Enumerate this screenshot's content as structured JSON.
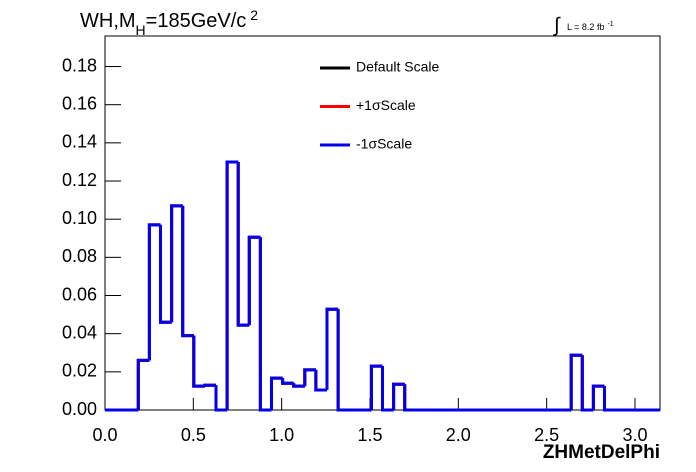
{
  "chart_data": {
    "type": "histogram",
    "title": {
      "main": "WH,M",
      "sub": "H",
      "rest": "=185GeV/c",
      "sup": "2"
    },
    "annotation": {
      "text": "L = 8.2 fb",
      "sup": "-1"
    },
    "xlabel": "ZHMetDelPhi",
    "bins": [
      0,
      0.0628,
      0.1257,
      0.1885,
      0.2513,
      0.3142,
      0.377,
      0.4398,
      0.5027,
      0.5655,
      0.6283,
      0.6912,
      0.754,
      0.8168,
      0.8796,
      0.9425,
      1.0053,
      1.0681,
      1.131,
      1.1938,
      1.2566,
      1.3195,
      1.3823,
      1.4451,
      1.508,
      1.5708,
      1.6336,
      1.6965,
      1.7593,
      1.8221,
      1.885,
      1.9478,
      2.0106,
      2.0735,
      2.1363,
      2.1991,
      2.2619,
      2.3248,
      2.3876,
      2.4504,
      2.5133,
      2.5761,
      2.6389,
      2.7018,
      2.7646,
      2.8274,
      2.8903,
      2.9531,
      3.0159,
      3.0788,
      3.1416
    ],
    "series": [
      {
        "name": "Default Scale",
        "color": "#000000",
        "values": [
          0,
          0,
          0,
          0.026,
          0.097,
          0.046,
          0.107,
          0.039,
          0.0125,
          0.013,
          0,
          0.13,
          0.0445,
          0.0905,
          0,
          0.0167,
          0.014,
          0.0125,
          0.021,
          0.0105,
          0.0528,
          0,
          0,
          0,
          0.023,
          0,
          0.0135,
          0,
          0,
          0,
          0,
          0,
          0,
          0,
          0,
          0,
          0,
          0,
          0,
          0,
          0,
          0,
          0.0287,
          0,
          0.0125,
          0,
          0,
          0,
          0,
          0
        ]
      },
      {
        "name": "+1σScale",
        "color": "#ff0000",
        "values": [
          0,
          0,
          0,
          0.026,
          0.097,
          0.046,
          0.107,
          0.039,
          0.0125,
          0.013,
          0,
          0.13,
          0.0445,
          0.0905,
          0,
          0.0167,
          0.014,
          0.0125,
          0.021,
          0.0105,
          0.0528,
          0,
          0,
          0,
          0.023,
          0,
          0.0135,
          0,
          0,
          0,
          0,
          0,
          0,
          0,
          0,
          0,
          0,
          0,
          0,
          0,
          0,
          0,
          0.0287,
          0,
          0.0125,
          0,
          0,
          0,
          0,
          0
        ]
      },
      {
        "name": "-1σScale",
        "color": "#0000ee",
        "values": [
          0,
          0,
          0,
          0.026,
          0.097,
          0.046,
          0.107,
          0.039,
          0.0125,
          0.013,
          0,
          0.13,
          0.0445,
          0.0905,
          0,
          0.0167,
          0.014,
          0.0125,
          0.021,
          0.0105,
          0.0528,
          0,
          0,
          0,
          0.023,
          0,
          0.0135,
          0,
          0,
          0,
          0,
          0,
          0,
          0,
          0,
          0,
          0,
          0,
          0,
          0,
          0,
          0,
          0.0287,
          0,
          0.0125,
          0,
          0,
          0,
          0,
          0
        ]
      }
    ],
    "xlim": [
      0,
      3.1416
    ],
    "ylim": [
      0,
      0.196
    ],
    "xticks": [
      {
        "value": 0,
        "label": "0.0"
      },
      0.5,
      {
        "value": 1,
        "label": "1.0"
      },
      1.5,
      {
        "value": 2,
        "label": "2.0"
      },
      2.5,
      {
        "value": 3,
        "label": "3.0"
      }
    ],
    "yticks": [
      {
        "value": 0,
        "label": "0.00"
      },
      0.02,
      0.04,
      0.06,
      0.08,
      {
        "value": 0.1,
        "label": "0.10"
      },
      0.12,
      0.14,
      0.16,
      0.18
    ]
  }
}
